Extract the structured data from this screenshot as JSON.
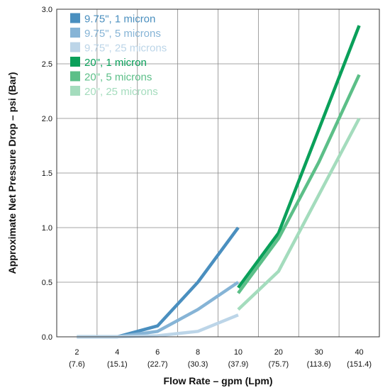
{
  "chart_data": {
    "type": "line",
    "xlabel": "Flow Rate – gpm (Lpm)",
    "ylabel": "Approximate Net Pressure Drop – psi (Bar)",
    "categories": [
      "2",
      "4",
      "6",
      "8",
      "10",
      "20",
      "30",
      "40"
    ],
    "categories_secondary": [
      "(7.6)",
      "(15.1)",
      "(22.7)",
      "(30.3)",
      "(37.9)",
      "(75.7)",
      "(113.6)",
      "(151.4)"
    ],
    "yticks": [
      "0.0",
      "0.5",
      "1.0",
      "1.5",
      "2.0",
      "2.5",
      "3.0"
    ],
    "ylim": [
      0,
      3.0
    ],
    "grid": true,
    "legend_position": "top-left",
    "series": [
      {
        "name": "9.75\", 1 micron",
        "color": "#4a8fbf",
        "x": [
          "2",
          "4",
          "6",
          "8",
          "10"
        ],
        "values": [
          0,
          0,
          0.1,
          0.5,
          1.0
        ]
      },
      {
        "name": "9.75\", 5 microns",
        "color": "#86b4d6",
        "x": [
          "2",
          "4",
          "6",
          "8",
          "10"
        ],
        "values": [
          0,
          0,
          0.05,
          0.25,
          0.5
        ]
      },
      {
        "name": "9.75\", 25 microns",
        "color": "#bcd5e8",
        "x": [
          "2",
          "4",
          "6",
          "8",
          "10"
        ],
        "values": [
          0,
          0,
          0.01,
          0.05,
          0.2
        ]
      },
      {
        "name": "20\", 1 micron",
        "color": "#0aa05a",
        "x": [
          "10",
          "20",
          "30",
          "40"
        ],
        "values": [
          0.45,
          0.95,
          1.9,
          2.85
        ]
      },
      {
        "name": "20\", 5 microns",
        "color": "#5cbf88",
        "x": [
          "10",
          "20",
          "30",
          "40"
        ],
        "values": [
          0.4,
          0.9,
          1.6,
          2.4
        ]
      },
      {
        "name": "20\", 25 microns",
        "color": "#a4dcbd",
        "x": [
          "10",
          "20",
          "30",
          "40"
        ],
        "values": [
          0.25,
          0.6,
          1.3,
          2.0
        ]
      }
    ]
  }
}
